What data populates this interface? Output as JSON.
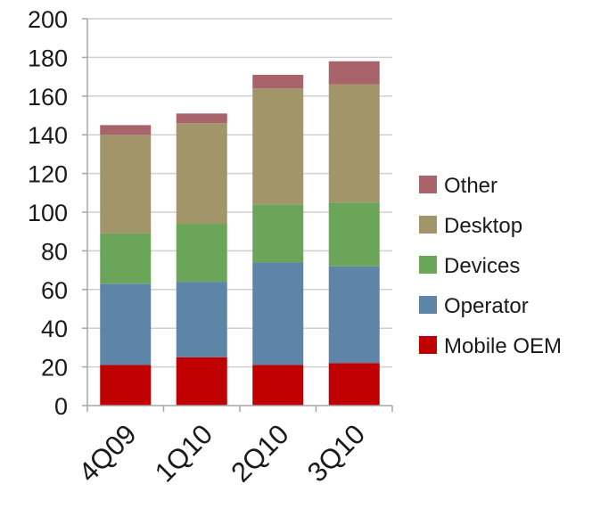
{
  "chart_data": {
    "type": "bar",
    "stacked": true,
    "categories": [
      "4Q09",
      "1Q10",
      "2Q10",
      "3Q10"
    ],
    "series": [
      {
        "name": "Mobile OEM",
        "color": "#c00000",
        "values": [
          21,
          25,
          21,
          22
        ]
      },
      {
        "name": "Operator",
        "color": "#5e84a8",
        "values": [
          42,
          39,
          53,
          50
        ]
      },
      {
        "name": "Devices",
        "color": "#6aa55a",
        "values": [
          26,
          30,
          30,
          33
        ]
      },
      {
        "name": "Desktop",
        "color": "#a3956a",
        "values": [
          51,
          52,
          60,
          61
        ]
      },
      {
        "name": "Other",
        "color": "#a8636b",
        "values": [
          5,
          5,
          7,
          12
        ]
      }
    ],
    "ylim": [
      0,
      200
    ],
    "yticks": [
      0,
      20,
      40,
      60,
      80,
      100,
      120,
      140,
      160,
      180,
      200
    ],
    "title": "",
    "xlabel": "",
    "ylabel": "",
    "grid": true,
    "legend": "right",
    "legend_order": [
      "Other",
      "Desktop",
      "Devices",
      "Operator",
      "Mobile OEM"
    ]
  }
}
